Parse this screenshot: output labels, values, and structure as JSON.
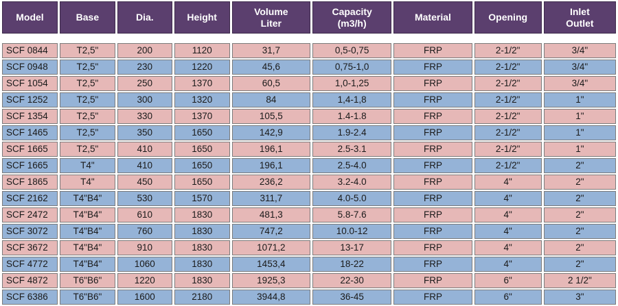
{
  "table": {
    "headers": [
      [
        "Model"
      ],
      [
        "Base"
      ],
      [
        "Dia."
      ],
      [
        "Height"
      ],
      [
        "Volume",
        "Liter"
      ],
      [
        "Capacity",
        "(m3/h)"
      ],
      [
        "Material"
      ],
      [
        "Opening"
      ],
      [
        "Inlet",
        "Outlet"
      ]
    ],
    "rows": [
      {
        "tone": "pink",
        "cells": [
          "SCF 0844",
          "T2,5\"",
          "200",
          "1120",
          "31,7",
          "0,5-0,75",
          "FRP",
          "2-1/2\"",
          "3/4\""
        ]
      },
      {
        "tone": "blue",
        "cells": [
          "SCF 0948",
          "T2,5\"",
          "230",
          "1220",
          "45,6",
          "0,75-1,0",
          "FRP",
          "2-1/2\"",
          "3/4\""
        ]
      },
      {
        "tone": "pink",
        "cells": [
          "SCF 1054",
          "T2,5\"",
          "250",
          "1370",
          "60,5",
          "1,0-1,25",
          "FRP",
          "2-1/2\"",
          "3/4\""
        ]
      },
      {
        "tone": "blue",
        "cells": [
          "SCF 1252",
          "T2,5\"",
          "300",
          "1320",
          "84",
          "1,4-1,8",
          "FRP",
          "2-1/2\"",
          "1\""
        ]
      },
      {
        "tone": "pink",
        "cells": [
          "SCF 1354",
          "T2,5\"",
          "330",
          "1370",
          "105,5",
          "1.4-1.8",
          "FRP",
          "2-1/2\"",
          "1\""
        ]
      },
      {
        "tone": "blue",
        "cells": [
          "SCF 1465",
          "T2,5\"",
          "350",
          "1650",
          "142,9",
          "1.9-2.4",
          "FRP",
          "2-1/2\"",
          "1\""
        ]
      },
      {
        "tone": "pink",
        "cells": [
          "SCF 1665",
          "T2,5\"",
          "410",
          "1650",
          "196,1",
          "2.5-3.1",
          "FRP",
          "2-1/2\"",
          "1\""
        ]
      },
      {
        "tone": "blue",
        "cells": [
          "SCF 1665",
          "T4\"",
          "410",
          "1650",
          "196,1",
          "2.5-4.0",
          "FRP",
          "2-1/2\"",
          "2\""
        ]
      },
      {
        "tone": "pink",
        "cells": [
          "SCF 1865",
          "T4\"",
          "450",
          "1650",
          "236,2",
          "3.2-4.0",
          "FRP",
          "4\"",
          "2\""
        ]
      },
      {
        "tone": "blue",
        "cells": [
          "SCF 2162",
          "T4\"B4\"",
          "530",
          "1570",
          "311,7",
          "4.0-5.0",
          "FRP",
          "4\"",
          "2\""
        ]
      },
      {
        "tone": "pink",
        "cells": [
          "SCF 2472",
          "T4\"B4\"",
          "610",
          "1830",
          "481,3",
          "5.8-7.6",
          "FRP",
          "4\"",
          "2\""
        ]
      },
      {
        "tone": "blue",
        "cells": [
          "SCF 3072",
          "T4\"B4\"",
          "760",
          "1830",
          "747,2",
          "10.0-12",
          "FRP",
          "4\"",
          "2\""
        ]
      },
      {
        "tone": "pink",
        "cells": [
          "SCF 3672",
          "T4\"B4\"",
          "910",
          "1830",
          "1071,2",
          "13-17",
          "FRP",
          "4\"",
          "2\""
        ]
      },
      {
        "tone": "blue",
        "cells": [
          "SCF 4772",
          "T4\"B4\"",
          "1060",
          "1830",
          "1453,4",
          "18-22",
          "FRP",
          "4\"",
          "2\""
        ]
      },
      {
        "tone": "pink",
        "cells": [
          "SCF 4872",
          "T6\"B6\"",
          "1220",
          "1830",
          "1925,3",
          "22-30",
          "FRP",
          "6\"",
          "2 1/2\""
        ]
      },
      {
        "tone": "blue",
        "cells": [
          "SCF 6386",
          "T6\"B6\"",
          "1600",
          "2180",
          "3944,8",
          "36-45",
          "FRP",
          "6\"",
          "3\""
        ]
      }
    ],
    "colors": {
      "header_bg": "#5b3f6e",
      "header_text": "#ffffff",
      "row_pink": "#e6b8b7",
      "row_blue": "#95b3d7"
    }
  }
}
